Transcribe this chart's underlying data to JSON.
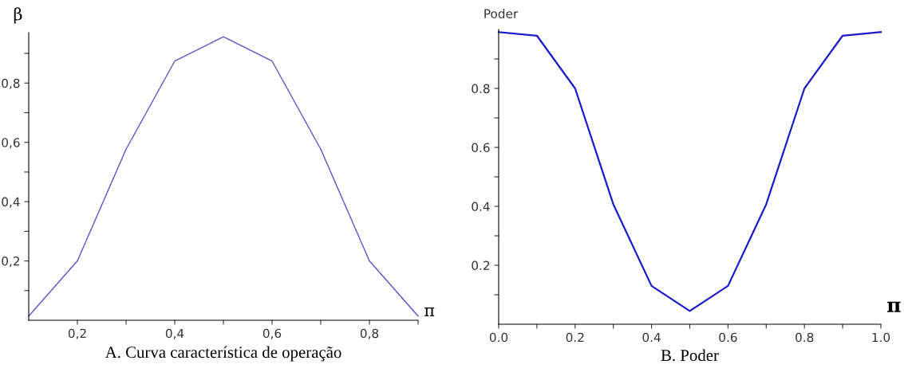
{
  "chart_data": [
    {
      "type": "line",
      "title": "A. Curva característica de operação",
      "ylabel": "β",
      "xlabel": "π",
      "x": [
        0.1,
        0.2,
        0.3,
        0.4,
        0.5,
        0.6,
        0.7,
        0.8,
        0.9
      ],
      "series": [
        {
          "color": "#5555cc",
          "values": [
            0.014,
            0.2,
            0.577,
            0.874,
            0.956,
            0.874,
            0.577,
            0.2,
            0.014
          ]
        }
      ],
      "xlim": [
        0.1,
        0.9
      ],
      "ylim": [
        0,
        0.97
      ],
      "xticks": [
        {
          "value": 0.2,
          "label": "0,2"
        },
        {
          "value": 0.3,
          "label": null
        },
        {
          "value": 0.4,
          "label": "0,4"
        },
        {
          "value": 0.5,
          "label": null
        },
        {
          "value": 0.6,
          "label": "0,6"
        },
        {
          "value": 0.7,
          "label": null
        },
        {
          "value": 0.8,
          "label": "0,8"
        },
        {
          "value": 0.9,
          "label": null
        }
      ],
      "yticks": [
        {
          "value": 0.1,
          "label": null
        },
        {
          "value": 0.2,
          "label": "0,2"
        },
        {
          "value": 0.3,
          "label": null
        },
        {
          "value": 0.4,
          "label": "0,4"
        },
        {
          "value": 0.5,
          "label": null
        },
        {
          "value": 0.6,
          "label": "0,6"
        },
        {
          "value": 0.7,
          "label": null
        },
        {
          "value": 0.8,
          "label": "0,8"
        },
        {
          "value": 0.9,
          "label": null
        }
      ],
      "grid": false,
      "legend": false,
      "marker": "none",
      "line_style": "solid"
    },
    {
      "type": "line",
      "title": "B. Poder",
      "ylabel": "Poder",
      "xlabel": "π",
      "x": [
        0.0,
        0.1,
        0.2,
        0.3,
        0.4,
        0.5,
        0.6,
        0.7,
        0.8,
        0.9,
        1.0
      ],
      "series": [
        {
          "color": "#1a1acc",
          "values": [
            0.991,
            0.979,
            0.8,
            0.407,
            0.13,
            0.045,
            0.13,
            0.407,
            0.8,
            0.979,
            0.991
          ]
        }
      ],
      "xlim": [
        0,
        1
      ],
      "ylim": [
        0,
        1.0
      ],
      "xticks": [
        {
          "value": 0.0,
          "label": "0.0"
        },
        {
          "value": 0.1,
          "label": null
        },
        {
          "value": 0.2,
          "label": "0.2"
        },
        {
          "value": 0.3,
          "label": null
        },
        {
          "value": 0.4,
          "label": "0.4"
        },
        {
          "value": 0.5,
          "label": null
        },
        {
          "value": 0.6,
          "label": "0.6"
        },
        {
          "value": 0.7,
          "label": null
        },
        {
          "value": 0.8,
          "label": "0.8"
        },
        {
          "value": 0.9,
          "label": null
        },
        {
          "value": 1.0,
          "label": "1.0"
        }
      ],
      "yticks": [
        {
          "value": 0.1,
          "label": null
        },
        {
          "value": 0.2,
          "label": "0.2"
        },
        {
          "value": 0.3,
          "label": null
        },
        {
          "value": 0.4,
          "label": "0.4"
        },
        {
          "value": 0.5,
          "label": null
        },
        {
          "value": 0.6,
          "label": "0.6"
        },
        {
          "value": 0.7,
          "label": null
        },
        {
          "value": 0.8,
          "label": "0.8"
        },
        {
          "value": 0.9,
          "label": null
        }
      ],
      "grid": false,
      "legend": false,
      "marker": "none",
      "line_style": "solid"
    }
  ]
}
